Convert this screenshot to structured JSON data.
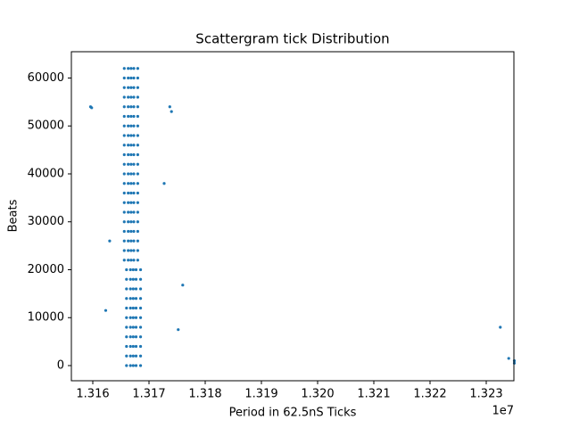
{
  "chart_data": {
    "type": "scatter",
    "title": "Scattergram tick Distribution",
    "x_label": "Period in 62.5nS Ticks",
    "y_label": "Beats",
    "x_offset_label": "1e7",
    "color": "#1f77b4",
    "grid": false,
    "xlim": [
      13156190,
      13234920
    ],
    "ylim": [
      -3163,
      65488
    ],
    "xticks": [
      {
        "value": 13160000,
        "label": "1.316"
      },
      {
        "value": 13170000,
        "label": "1.317"
      },
      {
        "value": 13180000,
        "label": "1.318"
      },
      {
        "value": 13190000,
        "label": "1.319"
      },
      {
        "value": 13200000,
        "label": "1.320"
      },
      {
        "value": 13210000,
        "label": "1.321"
      },
      {
        "value": 13220000,
        "label": "1.322"
      },
      {
        "value": 13230000,
        "label": "1.323"
      }
    ],
    "yticks": [
      0,
      10000,
      20000,
      30000,
      40000,
      50000,
      60000
    ],
    "x": [
      13166000,
      13166700,
      13167200,
      13167700,
      13168500,
      13166000,
      13166700,
      13167200,
      13167700,
      13168500,
      13166000,
      13166700,
      13167200,
      13167700,
      13168500,
      13166000,
      13166700,
      13167200,
      13167700,
      13168500,
      13166000,
      13166700,
      13167200,
      13167700,
      13168500,
      13166000,
      13166700,
      13167200,
      13167700,
      13168500,
      13166000,
      13166700,
      13167200,
      13167700,
      13168500,
      13166000,
      13166700,
      13167200,
      13167700,
      13168500,
      13166000,
      13166700,
      13167200,
      13167700,
      13168500,
      13166000,
      13166700,
      13167200,
      13167700,
      13168500,
      13166000,
      13166700,
      13167200,
      13167700,
      13168500,
      13165600,
      13166300,
      13166800,
      13167300,
      13168000,
      13165600,
      13166300,
      13166800,
      13167300,
      13168000,
      13165600,
      13166300,
      13166800,
      13167300,
      13168000,
      13165600,
      13166300,
      13166800,
      13167300,
      13168000,
      13165600,
      13166300,
      13166800,
      13167300,
      13168000,
      13165600,
      13166300,
      13166800,
      13167300,
      13168000,
      13165600,
      13166300,
      13166800,
      13167300,
      13168000,
      13165600,
      13166300,
      13166800,
      13167300,
      13168000,
      13165600,
      13166300,
      13166800,
      13167300,
      13168000,
      13165600,
      13166300,
      13166800,
      13167300,
      13168000,
      13165600,
      13166300,
      13166800,
      13167300,
      13168000,
      13165600,
      13166300,
      13166800,
      13167300,
      13168000,
      13165600,
      13166300,
      13166800,
      13167300,
      13168000,
      13165600,
      13166300,
      13166800,
      13167300,
      13168000,
      13165600,
      13166300,
      13166800,
      13167300,
      13168000,
      13165600,
      13166300,
      13166800,
      13167300,
      13168000,
      13165600,
      13166300,
      13166800,
      13167300,
      13168000,
      13165600,
      13166300,
      13166800,
      13167300,
      13168000,
      13165600,
      13166300,
      13166800,
      13167300,
      13168000,
      13165600,
      13166300,
      13166800,
      13167300,
      13168000,
      13165600,
      13166300,
      13166800,
      13167300,
      13168000,
      13159600,
      13159800,
      13232500,
      13234000,
      13235000,
      13235000,
      13176000,
      13175200,
      13173700,
      13174000,
      13172700,
      13162300,
      13163000
    ],
    "y": [
      0,
      0,
      0,
      0,
      0,
      2000,
      2000,
      2000,
      2000,
      2000,
      4000,
      4000,
      4000,
      4000,
      4000,
      6000,
      6000,
      6000,
      6000,
      6000,
      8000,
      8000,
      8000,
      8000,
      8000,
      10000,
      10000,
      10000,
      10000,
      10000,
      12000,
      12000,
      12000,
      12000,
      12000,
      14000,
      14000,
      14000,
      14000,
      14000,
      16000,
      16000,
      16000,
      16000,
      16000,
      18000,
      18000,
      18000,
      18000,
      18000,
      20000,
      20000,
      20000,
      20000,
      20000,
      22000,
      22000,
      22000,
      22000,
      22000,
      24000,
      24000,
      24000,
      24000,
      24000,
      26000,
      26000,
      26000,
      26000,
      26000,
      28000,
      28000,
      28000,
      28000,
      28000,
      30000,
      30000,
      30000,
      30000,
      30000,
      32000,
      32000,
      32000,
      32000,
      32000,
      34000,
      34000,
      34000,
      34000,
      34000,
      36000,
      36000,
      36000,
      36000,
      36000,
      38000,
      38000,
      38000,
      38000,
      38000,
      40000,
      40000,
      40000,
      40000,
      40000,
      42000,
      42000,
      42000,
      42000,
      42000,
      44000,
      44000,
      44000,
      44000,
      44000,
      46000,
      46000,
      46000,
      46000,
      46000,
      48000,
      48000,
      48000,
      48000,
      48000,
      50000,
      50000,
      50000,
      50000,
      50000,
      52000,
      52000,
      52000,
      52000,
      52000,
      54000,
      54000,
      54000,
      54000,
      54000,
      56000,
      56000,
      56000,
      56000,
      56000,
      58000,
      58000,
      58000,
      58000,
      58000,
      60000,
      60000,
      60000,
      60000,
      60000,
      62000,
      62000,
      62000,
      62000,
      62000,
      54000,
      53800,
      8000,
      1500,
      1000,
      500,
      16800,
      7500,
      54000,
      53000,
      38000,
      11500,
      26000
    ]
  }
}
